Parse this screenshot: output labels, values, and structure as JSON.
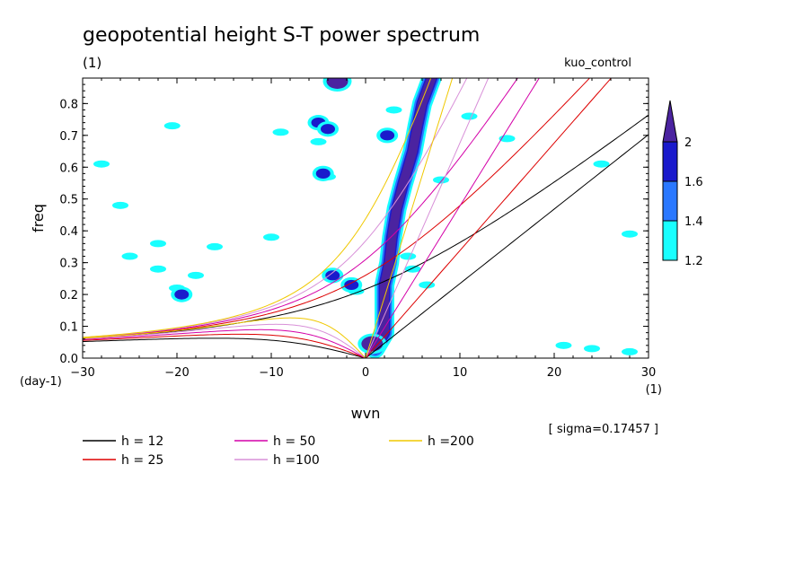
{
  "chart_data": {
    "type": "contour",
    "title": "geopotential height S-T power spectrum",
    "subtitle_left": "(1)",
    "subtitle_right": "kuo_control",
    "xlabel": "wvn",
    "ylabel": "freq",
    "x_unit": "(1)",
    "y_unit": "(day-1)",
    "xlim": [
      -30,
      30
    ],
    "ylim": [
      0,
      0.88
    ],
    "x_ticks": [
      -30,
      -20,
      -10,
      0,
      10,
      20,
      30
    ],
    "x_tick_labels": [
      "−30",
      "−20",
      "−10",
      "0",
      "10",
      "20",
      "30"
    ],
    "y_ticks": [
      0,
      0.1,
      0.2,
      0.3,
      0.4,
      0.5,
      0.6,
      0.7,
      0.8
    ],
    "y_tick_labels": [
      "0.0",
      "0.1",
      "0.2",
      "0.3",
      "0.4",
      "0.5",
      "0.6",
      "0.7",
      "0.8"
    ],
    "sigma_note": "[ sigma=0.17457 ]",
    "colorbar": {
      "levels": [
        1.2,
        1.4,
        1.6,
        2
      ],
      "labels": [
        "1.2",
        "1.4",
        "1.6",
        "2"
      ],
      "colors": [
        "#19ffff",
        "#2a78ff",
        "#1a1acc",
        "#4b23a0"
      ]
    },
    "dispersion_curves": [
      {
        "label": "h = 12",
        "h": 12,
        "color": "#000000"
      },
      {
        "label": "h = 25",
        "h": 25,
        "color": "#dd0000"
      },
      {
        "label": "h = 50",
        "h": 50,
        "color": "#d400a8"
      },
      {
        "label": "h =100",
        "h": 100,
        "color": "#d890d8"
      },
      {
        "label": "h =200",
        "h": 200,
        "color": "#f0c800"
      }
    ],
    "features": {
      "kelvin_band": [
        [
          1,
          0.03
        ],
        [
          2,
          0.08
        ],
        [
          2,
          0.23
        ],
        [
          2.5,
          0.3
        ],
        [
          2.8,
          0.38
        ],
        [
          3.3,
          0.47
        ],
        [
          4,
          0.55
        ],
        [
          5,
          0.65
        ],
        [
          5.5,
          0.73
        ],
        [
          6,
          0.8
        ],
        [
          7,
          0.88
        ]
      ],
      "blobs": [
        {
          "x": 0.7,
          "y": 0.045,
          "level": 2
        },
        {
          "x": -3,
          "y": 0.87,
          "level": 2
        },
        {
          "x": -5,
          "y": 0.74,
          "level": 1.6
        },
        {
          "x": -4,
          "y": 0.72,
          "level": 1.6
        },
        {
          "x": 2.3,
          "y": 0.7,
          "level": 1.6
        },
        {
          "x": -4.5,
          "y": 0.58,
          "level": 1.6
        },
        {
          "x": -19.5,
          "y": 0.2,
          "level": 1.6
        },
        {
          "x": -3.5,
          "y": 0.26,
          "level": 1.6
        },
        {
          "x": -1.5,
          "y": 0.23,
          "level": 1.6
        }
      ],
      "light_patches": [
        {
          "x": -22,
          "y": 0.28
        },
        {
          "x": -25,
          "y": 0.32
        },
        {
          "x": -20,
          "y": 0.22
        },
        {
          "x": -18,
          "y": 0.26
        },
        {
          "x": -3.5,
          "y": 0.27
        },
        {
          "x": -1,
          "y": 0.21
        },
        {
          "x": 5,
          "y": 0.28
        },
        {
          "x": 6.5,
          "y": 0.23
        },
        {
          "x": 21,
          "y": 0.04
        },
        {
          "x": 24,
          "y": 0.03
        },
        {
          "x": 28,
          "y": 0.02
        },
        {
          "x": 25,
          "y": 0.61
        },
        {
          "x": 15,
          "y": 0.69
        },
        {
          "x": -26,
          "y": 0.48
        },
        {
          "x": -28,
          "y": 0.61
        },
        {
          "x": -20.5,
          "y": 0.73
        },
        {
          "x": -9,
          "y": 0.71
        },
        {
          "x": -5,
          "y": 0.68
        },
        {
          "x": -4,
          "y": 0.57
        },
        {
          "x": 8,
          "y": 0.56
        },
        {
          "x": 11,
          "y": 0.76
        },
        {
          "x": 3,
          "y": 0.78
        },
        {
          "x": -16,
          "y": 0.35
        },
        {
          "x": -10,
          "y": 0.38
        },
        {
          "x": 28,
          "y": 0.39
        },
        {
          "x": -22,
          "y": 0.36
        },
        {
          "x": 4.5,
          "y": 0.32
        }
      ]
    }
  }
}
